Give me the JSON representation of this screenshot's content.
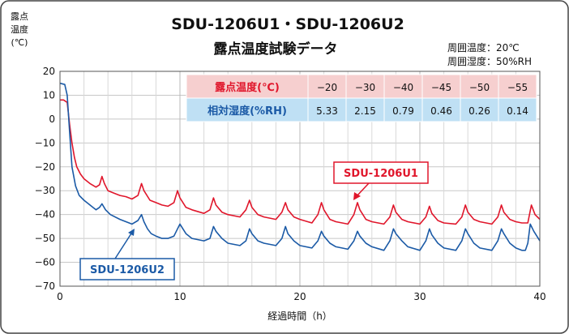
{
  "chart_data": {
    "type": "line",
    "title": "SDU-1206U1・SDU-1206U2",
    "subtitle": "露点温度試験データ",
    "conditions": [
      "周囲温度：20℃",
      "周囲湿度：50%RH"
    ],
    "ylabel": [
      "露点",
      "温度",
      "(℃)"
    ],
    "xlabel": "経過時間（h）",
    "xlim": [
      0,
      40
    ],
    "ylim": [
      -70,
      20
    ],
    "xticks": [
      0,
      10,
      20,
      30,
      40
    ],
    "yticks": [
      20,
      10,
      0,
      -10,
      -20,
      -30,
      -40,
      -50,
      -60,
      -70
    ],
    "grid": true,
    "table": {
      "header_dewpoint": "露点温度(℃)",
      "header_humidity": "相対湿度(%RH)",
      "dewpoints": [
        "−20",
        "−30",
        "−40",
        "−45",
        "−50",
        "−55"
      ],
      "humidities": [
        "5.33",
        "2.15",
        "0.79",
        "0.46",
        "0.26",
        "0.14"
      ]
    },
    "series": [
      {
        "name": "SDU-1206U1",
        "color": "#e0162b",
        "x": [
          0,
          0.3,
          0.6,
          0.8,
          1.0,
          1.2,
          1.4,
          1.7,
          2.0,
          2.5,
          3.0,
          3.3,
          3.5,
          3.7,
          4.0,
          4.5,
          5.0,
          5.5,
          6.0,
          6.5,
          6.8,
          7.0,
          7.5,
          8.0,
          8.5,
          9.0,
          9.5,
          9.8,
          10.0,
          10.5,
          11.0,
          12.0,
          12.5,
          12.8,
          13.0,
          13.5,
          14.0,
          15.0,
          15.5,
          15.8,
          16.0,
          16.5,
          17.0,
          18.0,
          18.5,
          18.8,
          19.0,
          19.5,
          20.0,
          21.0,
          21.5,
          21.8,
          22.0,
          22.5,
          23.0,
          24.0,
          24.5,
          24.8,
          25.0,
          25.5,
          26.0,
          27.0,
          27.5,
          27.8,
          28.0,
          28.5,
          29.0,
          30.0,
          30.5,
          30.8,
          31.0,
          31.5,
          32.0,
          33.0,
          33.5,
          33.8,
          34.0,
          34.5,
          35.0,
          36.0,
          36.5,
          36.8,
          37.0,
          37.5,
          38.0,
          38.5,
          39.0,
          39.3,
          39.6,
          40.0
        ],
        "y": [
          8,
          8,
          7,
          -2,
          -10,
          -16,
          -20,
          -23,
          -25,
          -27,
          -28.5,
          -27.5,
          -24,
          -27,
          -30,
          -31,
          -32,
          -32.5,
          -33.5,
          -32,
          -27,
          -30,
          -34,
          -35,
          -36,
          -36.5,
          -35,
          -30,
          -33,
          -37,
          -38,
          -39.5,
          -38,
          -33,
          -36,
          -39,
          -40,
          -41,
          -38,
          -34,
          -37,
          -40,
          -41,
          -42,
          -39,
          -35,
          -38,
          -41,
          -42,
          -43.5,
          -40,
          -35,
          -38,
          -42,
          -43,
          -44,
          -40,
          -35,
          -38,
          -42,
          -43,
          -44,
          -41,
          -36,
          -39,
          -42,
          -43,
          -44,
          -41,
          -36.5,
          -39.5,
          -42.5,
          -43.5,
          -44,
          -41,
          -36,
          -39,
          -42,
          -43,
          -44,
          -41,
          -36,
          -39,
          -42,
          -43,
          -43.5,
          -43.5,
          -36,
          -40,
          -42
        ]
      },
      {
        "name": "SDU-1206U2",
        "color": "#1b5aa6",
        "x": [
          0,
          0.4,
          0.6,
          0.8,
          1.0,
          1.3,
          1.6,
          2.0,
          2.5,
          3.0,
          3.3,
          3.5,
          3.8,
          4.2,
          5.0,
          5.5,
          6.0,
          6.5,
          6.8,
          7.0,
          7.3,
          7.6,
          8.0,
          8.5,
          9.0,
          9.5,
          9.8,
          10.0,
          10.5,
          11.0,
          12.0,
          12.5,
          12.8,
          13.0,
          13.5,
          14.0,
          15.0,
          15.5,
          15.8,
          16.0,
          16.5,
          17.0,
          18.0,
          18.5,
          18.8,
          19.0,
          19.5,
          20.0,
          21.0,
          21.5,
          21.8,
          22.0,
          22.5,
          23.0,
          24.0,
          24.5,
          24.8,
          25.0,
          25.5,
          26.0,
          27.0,
          27.5,
          27.8,
          28.0,
          28.5,
          29.0,
          30.0,
          30.5,
          30.8,
          31.0,
          31.5,
          32.0,
          33.0,
          33.5,
          33.8,
          34.0,
          34.5,
          35.0,
          36.0,
          36.5,
          36.8,
          37.0,
          37.5,
          38.0,
          38.5,
          38.8,
          39.0,
          39.2,
          39.5,
          40.0
        ],
        "y": [
          15,
          14.5,
          10,
          -5,
          -20,
          -28,
          -32,
          -34,
          -36,
          -38,
          -37,
          -35.5,
          -38,
          -40,
          -42,
          -43,
          -44,
          -42.5,
          -40,
          -43,
          -46,
          -48,
          -49,
          -50,
          -50,
          -49,
          -46,
          -44,
          -48,
          -50,
          -51,
          -50,
          -45,
          -47,
          -50,
          -52,
          -53,
          -51,
          -46,
          -48,
          -51,
          -52,
          -53,
          -50,
          -45,
          -48,
          -51,
          -53,
          -54,
          -51,
          -47,
          -49,
          -52,
          -53.5,
          -54.5,
          -51,
          -47,
          -49,
          -52,
          -53.5,
          -55,
          -51,
          -46,
          -48,
          -51,
          -53.5,
          -55,
          -51,
          -46,
          -48.5,
          -52,
          -54,
          -55,
          -51,
          -46,
          -48,
          -52,
          -54,
          -55,
          -51,
          -46,
          -48,
          -52,
          -54,
          -55,
          -55,
          -52,
          -44,
          -47,
          -51
        ]
      }
    ]
  }
}
